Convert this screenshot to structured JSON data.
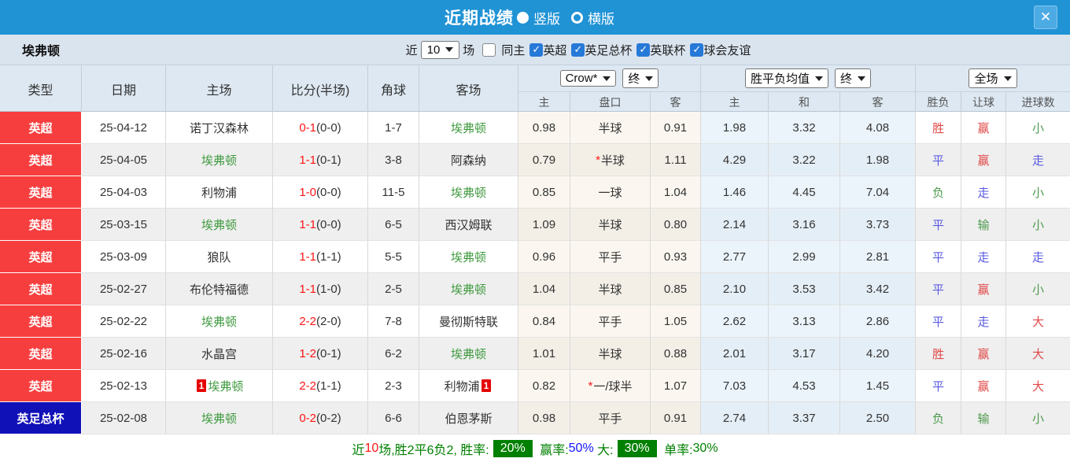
{
  "titlebar": {
    "title": "近期战绩",
    "close_label": "✕",
    "options": [
      {
        "label": "竖版",
        "selected": true
      },
      {
        "label": "横版",
        "selected": false
      }
    ]
  },
  "filters": {
    "team": "埃弗顿",
    "recent_label": "近",
    "recent_value": "10",
    "recent_suffix": "场",
    "checkboxes": [
      {
        "label": "同主",
        "checked": false
      },
      {
        "label": "英超",
        "checked": true
      },
      {
        "label": "英足总杯",
        "checked": true
      },
      {
        "label": "英联杯",
        "checked": true
      },
      {
        "label": "球会友谊",
        "checked": true
      }
    ]
  },
  "table": {
    "main_headers": [
      "类型",
      "日期",
      "主场",
      "比分(半场)",
      "角球",
      "客场"
    ],
    "dropdowns": {
      "bookmaker": "Crow*",
      "bookmaker_time": "终",
      "avg": "胜平负均值",
      "avg_time": "终",
      "scope": "全场"
    },
    "sub_headers": [
      "主",
      "盘口",
      "客",
      "主",
      "和",
      "客",
      "胜负",
      "让球",
      "进球数"
    ],
    "rows": [
      {
        "league": "英超",
        "league_color": "red",
        "date": "25-04-12",
        "home": "诺丁汉森林",
        "home_focus": false,
        "home_card": "",
        "score": "0-1",
        "half": "(0-0)",
        "corner": "1-7",
        "away": "埃弗顿",
        "away_focus": true,
        "away_card": "",
        "h_home": "0.98",
        "handicap": "半球",
        "handicap_star": false,
        "h_away": "0.91",
        "avg_win": "1.98",
        "avg_draw": "3.32",
        "avg_lose": "4.08",
        "result": "胜",
        "result_color": "red",
        "hcp_result": "赢",
        "hcp_result_color": "red",
        "goal_result": "小",
        "goal_result_color": "green"
      },
      {
        "league": "英超",
        "league_color": "red",
        "date": "25-04-05",
        "home": "埃弗顿",
        "home_focus": true,
        "home_card": "",
        "score": "1-1",
        "half": "(0-1)",
        "corner": "3-8",
        "away": "阿森纳",
        "away_focus": false,
        "away_card": "",
        "h_home": "0.79",
        "handicap": "半球",
        "handicap_star": true,
        "h_away": "1.11",
        "avg_win": "4.29",
        "avg_draw": "3.22",
        "avg_lose": "1.98",
        "result": "平",
        "result_color": "blue",
        "hcp_result": "赢",
        "hcp_result_color": "red",
        "goal_result": "走",
        "goal_result_color": "blue"
      },
      {
        "league": "英超",
        "league_color": "red",
        "date": "25-04-03",
        "home": "利物浦",
        "home_focus": false,
        "home_card": "",
        "score": "1-0",
        "half": "(0-0)",
        "corner": "11-5",
        "away": "埃弗顿",
        "away_focus": true,
        "away_card": "",
        "h_home": "0.85",
        "handicap": "一球",
        "handicap_star": false,
        "h_away": "1.04",
        "avg_win": "1.46",
        "avg_draw": "4.45",
        "avg_lose": "7.04",
        "result": "负",
        "result_color": "green",
        "hcp_result": "走",
        "hcp_result_color": "blue",
        "goal_result": "小",
        "goal_result_color": "green"
      },
      {
        "league": "英超",
        "league_color": "red",
        "date": "25-03-15",
        "home": "埃弗顿",
        "home_focus": true,
        "home_card": "",
        "score": "1-1",
        "half": "(0-0)",
        "corner": "6-5",
        "away": "西汉姆联",
        "away_focus": false,
        "away_card": "",
        "h_home": "1.09",
        "handicap": "半球",
        "handicap_star": false,
        "h_away": "0.80",
        "avg_win": "2.14",
        "avg_draw": "3.16",
        "avg_lose": "3.73",
        "result": "平",
        "result_color": "blue",
        "hcp_result": "输",
        "hcp_result_color": "green",
        "goal_result": "小",
        "goal_result_color": "green"
      },
      {
        "league": "英超",
        "league_color": "red",
        "date": "25-03-09",
        "home": "狼队",
        "home_focus": false,
        "home_card": "",
        "score": "1-1",
        "half": "(1-1)",
        "corner": "5-5",
        "away": "埃弗顿",
        "away_focus": true,
        "away_card": "",
        "h_home": "0.96",
        "handicap": "平手",
        "handicap_star": false,
        "h_away": "0.93",
        "avg_win": "2.77",
        "avg_draw": "2.99",
        "avg_lose": "2.81",
        "result": "平",
        "result_color": "blue",
        "hcp_result": "走",
        "hcp_result_color": "blue",
        "goal_result": "走",
        "goal_result_color": "blue"
      },
      {
        "league": "英超",
        "league_color": "red",
        "date": "25-02-27",
        "home": "布伦特福德",
        "home_focus": false,
        "home_card": "",
        "score": "1-1",
        "half": "(1-0)",
        "corner": "2-5",
        "away": "埃弗顿",
        "away_focus": true,
        "away_card": "",
        "h_home": "1.04",
        "handicap": "半球",
        "handicap_star": false,
        "h_away": "0.85",
        "avg_win": "2.10",
        "avg_draw": "3.53",
        "avg_lose": "3.42",
        "result": "平",
        "result_color": "blue",
        "hcp_result": "赢",
        "hcp_result_color": "red",
        "goal_result": "小",
        "goal_result_color": "green"
      },
      {
        "league": "英超",
        "league_color": "red",
        "date": "25-02-22",
        "home": "埃弗顿",
        "home_focus": true,
        "home_card": "",
        "score": "2-2",
        "half": "(2-0)",
        "corner": "7-8",
        "away": "曼彻斯特联",
        "away_focus": false,
        "away_card": "",
        "h_home": "0.84",
        "handicap": "平手",
        "handicap_star": false,
        "h_away": "1.05",
        "avg_win": "2.62",
        "avg_draw": "3.13",
        "avg_lose": "2.86",
        "result": "平",
        "result_color": "blue",
        "hcp_result": "走",
        "hcp_result_color": "blue",
        "goal_result": "大",
        "goal_result_color": "red"
      },
      {
        "league": "英超",
        "league_color": "red",
        "date": "25-02-16",
        "home": "水晶宫",
        "home_focus": false,
        "home_card": "",
        "score": "1-2",
        "half": "(0-1)",
        "corner": "6-2",
        "away": "埃弗顿",
        "away_focus": true,
        "away_card": "",
        "h_home": "1.01",
        "handicap": "半球",
        "handicap_star": false,
        "h_away": "0.88",
        "avg_win": "2.01",
        "avg_draw": "3.17",
        "avg_lose": "4.20",
        "result": "胜",
        "result_color": "red",
        "hcp_result": "赢",
        "hcp_result_color": "red",
        "goal_result": "大",
        "goal_result_color": "red"
      },
      {
        "league": "英超",
        "league_color": "red",
        "date": "25-02-13",
        "home": "埃弗顿",
        "home_focus": true,
        "home_card": "1",
        "score": "2-2",
        "half": "(1-1)",
        "corner": "2-3",
        "away": "利物浦",
        "away_focus": false,
        "away_card": "1",
        "h_home": "0.82",
        "handicap": "一/球半",
        "handicap_star": true,
        "h_away": "1.07",
        "avg_win": "7.03",
        "avg_draw": "4.53",
        "avg_lose": "1.45",
        "result": "平",
        "result_color": "blue",
        "hcp_result": "赢",
        "hcp_result_color": "red",
        "goal_result": "大",
        "goal_result_color": "red"
      },
      {
        "league": "英足总杯",
        "league_color": "blue",
        "date": "25-02-08",
        "home": "埃弗顿",
        "home_focus": true,
        "home_card": "",
        "score": "0-2",
        "half": "(0-2)",
        "corner": "6-6",
        "away": "伯恩茅斯",
        "away_focus": false,
        "away_card": "",
        "h_home": "0.98",
        "handicap": "平手",
        "handicap_star": false,
        "h_away": "0.91",
        "avg_win": "2.74",
        "avg_draw": "3.37",
        "avg_lose": "2.50",
        "result": "负",
        "result_color": "green",
        "hcp_result": "输",
        "hcp_result_color": "green",
        "goal_result": "小",
        "goal_result_color": "green"
      }
    ]
  },
  "summary": {
    "prefix": "近",
    "count": "10",
    "mid": "场,胜2平6负2, 胜率:",
    "win_rate": "20%",
    "handicap_label": " 赢率:",
    "handicap_rate": "50%",
    "big_label": " 大:",
    "big_rate": "30%",
    "single_label": " 单率:",
    "single_rate": "30%"
  },
  "colors": {
    "topbar_blue": "#2093d5",
    "league_red": "#f73e3e",
    "league_blue": "#1111b8",
    "score_red": "#ff1515",
    "focus_team_green": "#3f9a3f",
    "result_red": "#e04848",
    "result_blue": "#5a5ae0",
    "result_green": "#4f9a4f",
    "badge_green": "#008000",
    "rate_blue": "#1515ff",
    "checkbox_blue": "#2779d8",
    "card_red": "#e60000"
  }
}
